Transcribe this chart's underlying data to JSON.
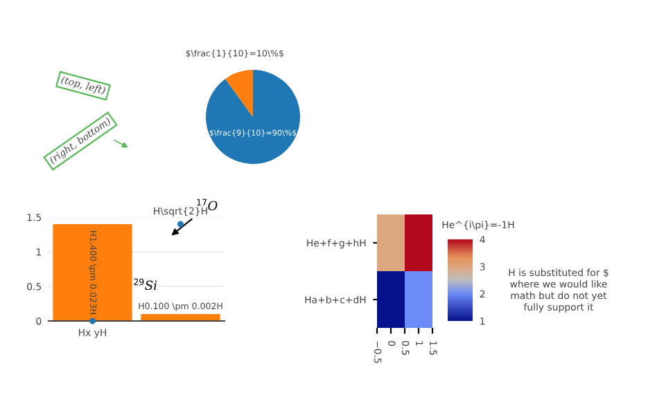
{
  "chart_data": [
    {
      "type": "pie",
      "categories": [
        null,
        null
      ],
      "values": [
        90,
        10
      ],
      "colors": [
        "#1f77b4",
        "#ff7f0e"
      ],
      "value_labels": [
        "$\\frac{9}{10}=90\\%$",
        "$\\frac{1}{10}=10\\%$"
      ],
      "annotations": [
        "(top, left)",
        "(right, bottom)"
      ]
    },
    {
      "type": "bar",
      "categories": [
        null,
        null
      ],
      "ylim": [
        0,
        1.5
      ],
      "yticks": [
        0,
        0.5,
        1,
        1.5
      ],
      "grid": "y",
      "series": [
        {
          "type": "bar",
          "color": "#ff7f0e",
          "values": [
            1.4,
            0.1
          ],
          "value_labels": [
            "H1.400 \\pm 0.023H",
            "H0.100 \\pm 0.002H"
          ]
        },
        {
          "type": "scatter",
          "color": "#1f77b4",
          "values": [
            0,
            1.4
          ]
        }
      ],
      "annotations": [
        "$^{17}$O",
        "$^{29}$Si",
        "Hx yH",
        "H\\sqrt{2}H"
      ]
    },
    {
      "type": "heatmap",
      "x": [
        0,
        1
      ],
      "xlim": [
        -0.5,
        1.5
      ],
      "xticks": [
        {
          "value": -0.5,
          "label": "−0.5"
        },
        0,
        0.5,
        1,
        1.5
      ],
      "y_categories": [
        "He+f+g+hH",
        "Ha+b+c+dH"
      ],
      "cells": [
        [
          3,
          4
        ],
        [
          1,
          2
        ]
      ],
      "clim": [
        1,
        4
      ],
      "cticks": [
        1,
        2,
        3,
        4
      ],
      "clabel": "He^{i\\pi}=-1H",
      "annotations": [
        "H is substituted for $\nwhere we would like\nmath but do not yet\nfully support it"
      ]
    }
  ]
}
